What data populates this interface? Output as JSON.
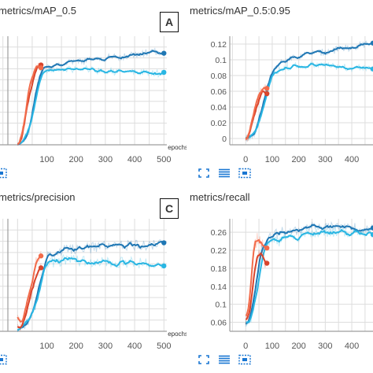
{
  "panels": [
    {
      "title": "metrics/mAP_0.5",
      "label": "A",
      "xlabel": "epochs",
      "x_ticks": [
        "100",
        "200",
        "300",
        "400",
        "500"
      ],
      "y_ticks": []
    },
    {
      "title": "metrics/mAP_0.5:0.95",
      "label": "",
      "xlabel": "",
      "x_ticks": [
        "0",
        "100",
        "200",
        "300",
        "400"
      ],
      "y_ticks": [
        "0",
        "0.02",
        "0.04",
        "0.06",
        "0.08",
        "0.1",
        "0.12"
      ]
    },
    {
      "title": "metrics/precision",
      "label": "C",
      "xlabel": "epochs",
      "x_ticks": [
        "100",
        "200",
        "300",
        "400",
        "500"
      ],
      "y_ticks": []
    },
    {
      "title": "metrics/recall",
      "label": "",
      "xlabel": "",
      "x_ticks": [
        "0",
        "100",
        "200",
        "300",
        "400"
      ],
      "y_ticks": [
        "0.06",
        "0.1",
        "0.14",
        "0.18",
        "0.22",
        "0.26"
      ]
    }
  ],
  "toolbar": [
    "fit-domain-icon",
    "toggle-log-scale-icon",
    "expand-chart-icon"
  ],
  "colors": {
    "dark_blue": "#1f77b4",
    "light_blue": "#29b6e3",
    "red": "#d9442b",
    "orange": "#f26b4a",
    "grid": "#dddddd",
    "axis": "#9e9e9e"
  },
  "chart_data": [
    {
      "type": "line",
      "title": "metrics/mAP_0.5",
      "xlabel": "epochs",
      "xlim": [
        -60,
        510
      ],
      "ylim": [
        0,
        1
      ],
      "series": [
        {
          "color": "#1f77b4",
          "x": [
            0,
            20,
            40,
            60,
            80,
            100,
            130,
            160,
            200,
            250,
            300,
            350,
            400,
            450,
            500
          ],
          "y": [
            0.0,
            0.03,
            0.15,
            0.45,
            0.68,
            0.72,
            0.74,
            0.75,
            0.76,
            0.78,
            0.8,
            0.81,
            0.83,
            0.85,
            0.86
          ]
        },
        {
          "color": "#29b6e3",
          "x": [
            0,
            20,
            40,
            60,
            80,
            100,
            130,
            160,
            200,
            250,
            300,
            350,
            400,
            450,
            500
          ],
          "y": [
            0.0,
            0.03,
            0.13,
            0.4,
            0.63,
            0.68,
            0.69,
            0.7,
            0.7,
            0.69,
            0.68,
            0.67,
            0.67,
            0.66,
            0.66
          ]
        },
        {
          "color": "#d9442b",
          "x": [
            0,
            10,
            20,
            30,
            40,
            50,
            60,
            70,
            80
          ],
          "y": [
            0.0,
            0.02,
            0.14,
            0.3,
            0.44,
            0.58,
            0.69,
            0.72,
            0.7
          ]
        },
        {
          "color": "#f26b4a",
          "x": [
            0,
            10,
            20,
            30,
            40,
            50,
            60,
            70,
            80
          ],
          "y": [
            0.0,
            0.03,
            0.18,
            0.36,
            0.52,
            0.63,
            0.73,
            0.76,
            0.72
          ]
        }
      ]
    },
    {
      "type": "line",
      "title": "metrics/mAP_0.5:0.95",
      "xlim": [
        -60,
        480
      ],
      "ylim": [
        -0.008,
        0.13
      ],
      "series": [
        {
          "color": "#1f77b4",
          "x": [
            0,
            20,
            40,
            60,
            80,
            100,
            130,
            160,
            200,
            250,
            300,
            350,
            400,
            450,
            480
          ],
          "y": [
            0.0,
            0.002,
            0.01,
            0.035,
            0.062,
            0.085,
            0.095,
            0.1,
            0.105,
            0.108,
            0.11,
            0.113,
            0.116,
            0.12,
            0.122
          ]
        },
        {
          "color": "#29b6e3",
          "x": [
            0,
            20,
            40,
            60,
            80,
            100,
            130,
            160,
            200,
            250,
            300,
            350,
            400,
            450,
            480
          ],
          "y": [
            0.0,
            0.002,
            0.009,
            0.032,
            0.058,
            0.08,
            0.088,
            0.091,
            0.093,
            0.093,
            0.092,
            0.091,
            0.09,
            0.09,
            0.09
          ]
        },
        {
          "color": "#d9442b",
          "x": [
            0,
            10,
            20,
            30,
            40,
            50,
            60,
            70,
            80
          ],
          "y": [
            0.0,
            0.002,
            0.012,
            0.025,
            0.038,
            0.05,
            0.058,
            0.06,
            0.057
          ]
        },
        {
          "color": "#f26b4a",
          "x": [
            0,
            10,
            20,
            30,
            40,
            50,
            60,
            70,
            80
          ],
          "y": [
            0.0,
            0.003,
            0.015,
            0.03,
            0.044,
            0.054,
            0.062,
            0.066,
            0.06
          ]
        }
      ]
    },
    {
      "type": "line",
      "title": "metrics/precision",
      "xlabel": "epochs",
      "xlim": [
        -60,
        510
      ],
      "ylim": [
        0,
        1
      ],
      "series": [
        {
          "color": "#1f77b4",
          "x": [
            0,
            20,
            40,
            60,
            80,
            100,
            130,
            160,
            200,
            250,
            300,
            350,
            400,
            450,
            500
          ],
          "y": [
            0.0,
            0.05,
            0.1,
            0.22,
            0.45,
            0.65,
            0.7,
            0.72,
            0.73,
            0.74,
            0.75,
            0.76,
            0.76,
            0.77,
            0.77
          ]
        },
        {
          "color": "#29b6e3",
          "x": [
            0,
            20,
            40,
            60,
            80,
            100,
            130,
            160,
            200,
            250,
            300,
            350,
            400,
            450,
            500
          ],
          "y": [
            0.0,
            0.05,
            0.09,
            0.2,
            0.42,
            0.6,
            0.62,
            0.63,
            0.63,
            0.62,
            0.62,
            0.61,
            0.61,
            0.6,
            0.6
          ]
        },
        {
          "color": "#d9442b",
          "x": [
            0,
            10,
            20,
            30,
            40,
            50,
            60,
            70,
            80
          ],
          "y": [
            0.05,
            0.02,
            0.08,
            0.15,
            0.25,
            0.35,
            0.45,
            0.5,
            0.55
          ]
        },
        {
          "color": "#f26b4a",
          "x": [
            0,
            10,
            20,
            30,
            40,
            50,
            60,
            70,
            80
          ],
          "y": [
            0.1,
            0.05,
            0.1,
            0.22,
            0.35,
            0.48,
            0.58,
            0.63,
            0.66
          ]
        }
      ]
    },
    {
      "type": "line",
      "title": "metrics/recall",
      "xlim": [
        -60,
        480
      ],
      "ylim": [
        0.04,
        0.29
      ],
      "series": [
        {
          "color": "#1f77b4",
          "x": [
            0,
            20,
            40,
            60,
            80,
            100,
            130,
            160,
            200,
            250,
            300,
            350,
            400,
            450,
            480
          ],
          "y": [
            0.06,
            0.08,
            0.14,
            0.22,
            0.25,
            0.25,
            0.26,
            0.26,
            0.26,
            0.27,
            0.27,
            0.27,
            0.27,
            0.27,
            0.27
          ]
        },
        {
          "color": "#29b6e3",
          "x": [
            0,
            20,
            40,
            60,
            80,
            100,
            130,
            160,
            200,
            250,
            300,
            350,
            400,
            450,
            480
          ],
          "y": [
            0.06,
            0.07,
            0.12,
            0.2,
            0.23,
            0.24,
            0.24,
            0.25,
            0.25,
            0.26,
            0.26,
            0.26,
            0.26,
            0.26,
            0.26
          ]
        },
        {
          "color": "#d9442b",
          "x": [
            0,
            10,
            20,
            30,
            40,
            50,
            60,
            70,
            80
          ],
          "y": [
            0.06,
            0.07,
            0.1,
            0.16,
            0.2,
            0.22,
            0.21,
            0.2,
            0.19
          ]
        },
        {
          "color": "#f26b4a",
          "x": [
            0,
            10,
            20,
            30,
            40,
            50,
            60,
            70,
            80
          ],
          "y": [
            0.07,
            0.08,
            0.14,
            0.22,
            0.24,
            0.25,
            0.24,
            0.23,
            0.22
          ]
        }
      ]
    }
  ]
}
